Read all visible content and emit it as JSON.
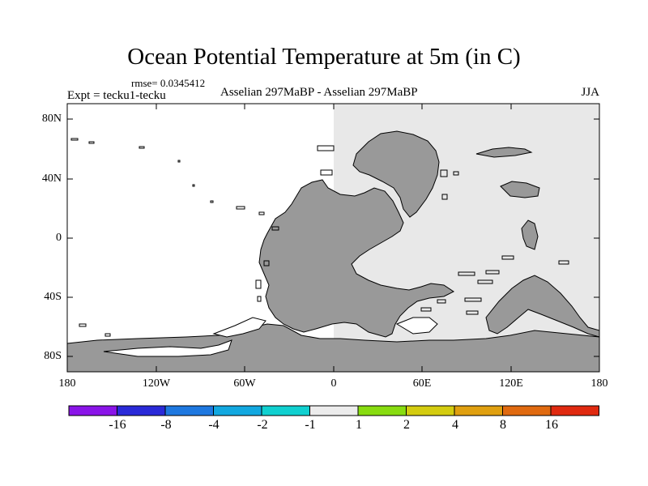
{
  "title": "Ocean Potential Temperature at 5m (in C)",
  "rmse": "rmse= 0.0345412",
  "expt": "Expt = tecku1-tecku",
  "comparison": "Asselian 297MaBP - Asselian 297MaBP",
  "season": "JJA",
  "lat_ticks": [
    "80N",
    "40N",
    "0",
    "40S",
    "80S"
  ],
  "lon_ticks": [
    "180",
    "120W",
    "60W",
    "0",
    "60E",
    "120E",
    "180"
  ],
  "colorbar": {
    "colors": [
      "#8a14e8",
      "#2a2ad8",
      "#1e78e0",
      "#12a8e0",
      "#10d0d0",
      "#ececec",
      "#88dc10",
      "#d4cc10",
      "#e0a010",
      "#e06a10",
      "#e02a10"
    ],
    "labels": [
      "-16",
      "-8",
      "-4",
      "-2",
      "-1",
      "1",
      "2",
      "4",
      "8",
      "16"
    ]
  },
  "colors": {
    "land": "#999999",
    "zero_diff": "#e8e8e8",
    "ocean_white": "#ffffff"
  }
}
